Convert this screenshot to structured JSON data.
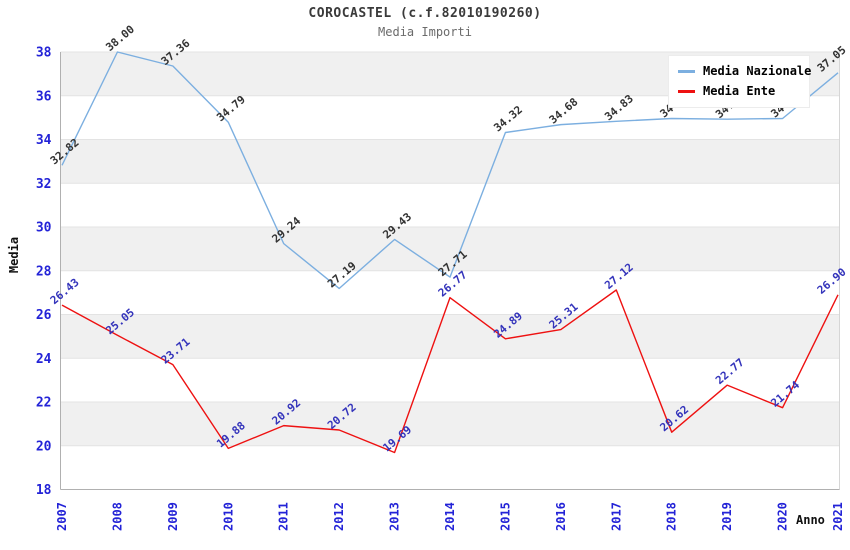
{
  "chart_data": {
    "type": "line",
    "title": "COROCASTEL (c.f.82010190260)",
    "subtitle": "Media Importi",
    "xlabel": "Anno",
    "ylabel": "Media",
    "x": [
      2007,
      2008,
      2009,
      2010,
      2011,
      2012,
      2013,
      2014,
      2015,
      2016,
      2017,
      2018,
      2019,
      2020,
      2021
    ],
    "series": [
      {
        "name": "Media Nazionale",
        "color": "#7cafe0",
        "label_color": "#333333",
        "values": [
          32.82,
          38.0,
          37.36,
          34.79,
          29.24,
          27.19,
          29.43,
          27.71,
          34.32,
          34.68,
          34.83,
          34.96,
          34.93,
          34.96,
          37.05
        ]
      },
      {
        "name": "Media Ente",
        "color": "#ee1111",
        "label_color": "#3434bb",
        "values": [
          26.43,
          25.05,
          23.71,
          19.88,
          20.92,
          20.72,
          19.69,
          26.77,
          24.89,
          25.31,
          27.12,
          20.62,
          22.77,
          21.74,
          26.9
        ]
      }
    ],
    "ylim": [
      18,
      38
    ],
    "ytick_step": 2,
    "grid": "horizontal-bands",
    "legend_position": "top-right",
    "band_color": "#f0f0f0",
    "gridline_color": "#e3e3e3",
    "axis_color": "#b0b0b0",
    "right_border_color": "#d6d6d6",
    "tick_color": "#2323d7",
    "label_rotation": -40,
    "xtick_rotation": -90
  }
}
